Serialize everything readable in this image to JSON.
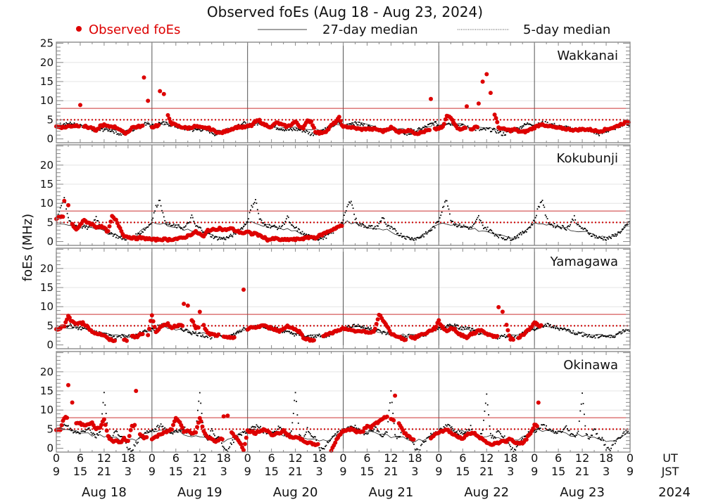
{
  "chart_data": {
    "type": "scatter",
    "title": "Observed foEs (Aug 18 - Aug 23, 2024)",
    "ylabel": "foEs (MHz)",
    "ylim": [
      -1,
      25.3
    ],
    "yticks": [
      0,
      5,
      10,
      15,
      20,
      25
    ],
    "grid": true,
    "legend": {
      "placement": "top",
      "entries": [
        {
          "label": "Observed foEs",
          "marker": "dot",
          "color": "#dd0000"
        },
        {
          "label": "27-day median",
          "marker": "solid-line",
          "color": "#000000"
        },
        {
          "label": "5-day median",
          "marker": "dotted-line",
          "color": "#000000"
        }
      ]
    },
    "reference_lines": [
      {
        "value": 8,
        "style": "solid",
        "color": "#cc3333"
      },
      {
        "value": 5,
        "style": "dotted",
        "color": "#cc0000"
      }
    ],
    "x_ticks_ut": [
      "0",
      "6",
      "12",
      "18",
      "0",
      "6",
      "12",
      "18",
      "0",
      "6",
      "12",
      "18",
      "0",
      "6",
      "12",
      "18",
      "0",
      "6",
      "12",
      "18",
      "0",
      "6",
      "12",
      "18",
      "0"
    ],
    "x_ticks_jst": [
      "9",
      "15",
      "21",
      "3",
      "9",
      "15",
      "21",
      "3",
      "9",
      "15",
      "21",
      "3",
      "9",
      "15",
      "21",
      "3",
      "9",
      "15",
      "21",
      "3",
      "9",
      "15",
      "21",
      "3",
      "9"
    ],
    "x_row_labels": {
      "ut": "UT",
      "jst": "JST"
    },
    "days": [
      "Aug 18",
      "Aug 19",
      "Aug 20",
      "Aug 21",
      "Aug 22",
      "Aug 23"
    ],
    "year": "2024",
    "hours_total": 144,
    "observed_end_hour": 122,
    "panels": [
      {
        "station": "Wakkanai",
        "median27_base": [
          3.5,
          3.6,
          3.8,
          3.9,
          4.0,
          3.8,
          3.6,
          3.4,
          3.2,
          3.0,
          2.9,
          2.8,
          2.7,
          2.6,
          2.5,
          2.5,
          2.4,
          2.4,
          2.3,
          2.5,
          2.8,
          3.2,
          3.6,
          4.0
        ],
        "median5_base": [
          3.4,
          3.7,
          4.2,
          4.0,
          3.9,
          3.6,
          3.3,
          3.0,
          2.8,
          2.6,
          2.4,
          2.3,
          2.5,
          2.4,
          2.2,
          1.8,
          1.2,
          1.5,
          2.0,
          2.4,
          2.8,
          3.3,
          3.8,
          4.2
        ],
        "observed": [
          3.2,
          3.1,
          3.0,
          3.3,
          3.4,
          3.5,
          9.0,
          3.3,
          3.0,
          2.9,
          1.9,
          3.4,
          3.6,
          3.2,
          3.3,
          3.0,
          2.5,
          1.5,
          1.8,
          3.0,
          3.1,
          3.3,
          16.0,
          10.2,
          3.0,
          3.5,
          12.5,
          11.5,
          6.0,
          4.0,
          3.6,
          3.2,
          3.0,
          2.8,
          3.1,
          3.3,
          3.0,
          2.8,
          2.9,
          2.4,
          2.0,
          1.5,
          1.8,
          2.2,
          2.6,
          3.0,
          3.2,
          3.0,
          3.3,
          3.5,
          4.5,
          4.8,
          3.8,
          3.5,
          3.0,
          4.2,
          4.0,
          3.5,
          3.2,
          3.8,
          4.5,
          3.3,
          3.0,
          4.6,
          4.6,
          2.0,
          1.5,
          1.8,
          2.2,
          3.5,
          4.3,
          5.5,
          3.0,
          3.2,
          3.0,
          2.8,
          2.6,
          2.5,
          2.7,
          2.5,
          2.6,
          2.3,
          2.0,
          2.5,
          3.0,
          2.4,
          1.8,
          2.2,
          2.0,
          2.3,
          1.5,
          1.5,
          1.8,
          2.2,
          10.3,
          2.5,
          2.8,
          3.0,
          6.0,
          5.5,
          4.0,
          2.5,
          2.8,
          8.5,
          2.5,
          3.0,
          9.5,
          15.0,
          17.0,
          12.0,
          6.5,
          3.0,
          2.6,
          2.4,
          2.2,
          2.5,
          2.0,
          1.8,
          2.0,
          2.5,
          3.0,
          3.5,
          4.0,
          3.2,
          3.3,
          3.0,
          2.8,
          2.8,
          2.6,
          2.5,
          2.3,
          2.4,
          2.5,
          2.5,
          2.4,
          2.2,
          2.0,
          2.2,
          2.5,
          2.8,
          3.0,
          3.5,
          4.0,
          4.3
        ]
      },
      {
        "station": "Kokubunji",
        "median27_base": [
          4.8,
          5.0,
          4.8,
          4.6,
          4.4,
          4.2,
          3.9,
          3.6,
          3.4,
          3.2,
          3.0,
          2.9,
          2.7,
          2.3,
          2.0,
          1.6,
          1.2,
          1.0,
          1.0,
          1.2,
          1.6,
          2.3,
          3.2,
          4.2
        ],
        "median5_base": [
          5.5,
          9.0,
          11.0,
          6.0,
          4.5,
          4.2,
          4.0,
          3.8,
          3.5,
          4.5,
          6.5,
          4.0,
          3.5,
          2.8,
          2.0,
          1.5,
          1.0,
          0.8,
          0.8,
          1.0,
          1.5,
          2.2,
          3.0,
          4.0
        ],
        "observed": [
          6.0,
          6.5,
          10.5,
          9.5,
          4.5,
          3.0,
          4.5,
          5.5,
          5.0,
          4.5,
          3.8,
          4.0,
          3.5,
          2.5,
          6.5,
          5.5,
          3.5,
          1.5,
          1.2,
          1.0,
          0.8,
          1.0,
          0.8,
          0.8,
          0.5,
          0.5,
          0.6,
          0.6,
          0.5,
          0.6,
          0.7,
          0.8,
          1.0,
          1.5,
          2.0,
          2.5,
          2.0,
          1.2,
          3.0,
          3.0,
          3.2,
          3.5,
          3.0,
          3.2,
          3.4,
          2.8,
          2.5,
          2.2,
          2.5,
          2.0,
          2.2,
          1.5,
          1.2,
          0.5,
          0.6,
          0.8,
          0.5,
          0.4,
          0.5,
          0.6,
          0.5,
          0.7,
          0.8,
          1.0,
          1.2,
          1.0,
          1.5,
          2.0,
          2.5,
          3.0,
          3.5,
          4.0,
          null,
          null,
          null,
          null,
          null,
          null,
          null,
          null,
          null,
          null,
          null,
          null,
          null,
          null,
          null,
          null,
          null,
          null,
          null,
          null,
          null,
          null,
          null,
          null,
          null,
          null,
          null,
          null,
          null,
          null,
          null,
          null,
          null,
          null,
          null,
          null,
          null,
          null,
          null,
          null,
          null,
          null,
          null,
          null,
          null,
          null,
          null,
          null,
          null,
          null,
          null,
          null,
          null,
          null,
          null,
          null,
          null,
          null,
          null,
          null,
          null,
          null,
          null,
          null,
          null,
          null,
          null,
          null,
          null,
          null,
          null,
          null
        ]
      },
      {
        "station": "Yamagawa",
        "median27_base": [
          4.2,
          4.4,
          4.6,
          4.7,
          4.6,
          4.4,
          4.2,
          4.0,
          3.8,
          3.6,
          3.4,
          3.2,
          3.0,
          2.8,
          2.6,
          2.5,
          2.4,
          2.3,
          2.3,
          2.4,
          2.6,
          3.0,
          3.5,
          4.0
        ],
        "median5_base": [
          4.0,
          4.5,
          5.0,
          5.2,
          5.0,
          4.6,
          4.3,
          4.4,
          4.0,
          3.6,
          3.2,
          3.0,
          2.8,
          2.5,
          2.2,
          2.0,
          2.2,
          2.5,
          2.3,
          2.0,
          2.4,
          3.0,
          3.5,
          4.0
        ],
        "observed": [
          4.0,
          4.5,
          4.8,
          7.5,
          6.0,
          5.5,
          6.0,
          5.5,
          4.5,
          3.5,
          3.0,
          2.8,
          2.5,
          1.5,
          1.2,
          null,
          null,
          1.2,
          null,
          2.5,
          2.0,
          2.8,
          null,
          2.5,
          7.8,
          3.5,
          4.5,
          5.0,
          5.5,
          4.5,
          5.0,
          5.2,
          11.0,
          10.5,
          6.5,
          4.5,
          8.5,
          5.0,
          3.0,
          2.8,
          2.5,
          null,
          2.0,
          1.8,
          2.0,
          null,
          null,
          14.5,
          4.0,
          4.5,
          4.6,
          4.8,
          5.2,
          4.5,
          4.5,
          4.0,
          3.6,
          4.2,
          5.0,
          4.5,
          4.0,
          3.5,
          2.0,
          1.5,
          1.2,
          null,
          null,
          2.5,
          2.8,
          3.0,
          3.5,
          4.0,
          4.2,
          4.0,
          3.8,
          3.5,
          3.6,
          3.8,
          3.2,
          3.0,
          4.0,
          8.0,
          6.5,
          5.0,
          2.8,
          2.5,
          2.2,
          1.5,
          null,
          2.0,
          1.8,
          2.5,
          2.8,
          3.2,
          3.8,
          4.3,
          6.2,
          4.5,
          3.5,
          4.5,
          4.0,
          2.8,
          2.5,
          2.0,
          2.8,
          3.0,
          4.0,
          3.5,
          3.0,
          2.5,
          2.2,
          10.0,
          8.5,
          5.0,
          1.5,
          null,
          2.0,
          2.5,
          3.5,
          4.5,
          6.0,
          5.0,
          null,
          null,
          null,
          null,
          null,
          null,
          null,
          null,
          null,
          null,
          null,
          null,
          null,
          null,
          null,
          null,
          null,
          null,
          null,
          null,
          null,
          null
        ]
      },
      {
        "station": "Okinawa",
        "median27_base": [
          4.5,
          4.6,
          4.8,
          4.7,
          4.5,
          4.3,
          4.2,
          4.0,
          3.8,
          3.6,
          3.4,
          3.2,
          3.0,
          3.0,
          2.8,
          2.6,
          2.4,
          2.2,
          2.0,
          2.0,
          2.2,
          2.8,
          3.5,
          4.2
        ],
        "median5_base": [
          4.5,
          5.0,
          6.0,
          5.5,
          4.5,
          4.0,
          4.2,
          4.5,
          5.5,
          4.0,
          3.0,
          4.5,
          14.5,
          3.5,
          2.5,
          5.0,
          3.0,
          2.5,
          0.0,
          -0.5,
          1.5,
          2.5,
          3.5,
          4.2
        ],
        "observed": [
          4.5,
          5.0,
          8.0,
          16.5,
          12.0,
          6.5,
          6.5,
          6.0,
          6.5,
          6.5,
          5.0,
          5.5,
          7.5,
          3.0,
          2.0,
          1.8,
          1.5,
          2.5,
          2.0,
          6.0,
          14.8,
          3.5,
          2.8,
          null,
          2.5,
          3.0,
          3.5,
          4.0,
          4.5,
          5.0,
          8.0,
          7.0,
          4.5,
          4.5,
          4.0,
          4.2,
          8.0,
          4.5,
          3.0,
          2.5,
          1.5,
          2.5,
          8.5,
          8.5,
          4.0,
          3.0,
          1.5,
          -0.5,
          4.5,
          4.2,
          4.0,
          4.2,
          5.0,
          4.5,
          3.5,
          3.8,
          4.0,
          4.5,
          3.5,
          3.0,
          2.8,
          2.5,
          2.0,
          1.5,
          1.2,
          1.0,
          null,
          null,
          null,
          -0.5,
          1.5,
          3.5,
          4.5,
          4.8,
          5.0,
          4.5,
          4.2,
          4.5,
          6.0,
          5.5,
          6.5,
          7.0,
          8.0,
          8.5,
          7.5,
          14.0,
          6.5,
          4.5,
          3.5,
          2.5,
          null,
          null,
          null,
          null,
          2.5,
          3.5,
          4.0,
          4.5,
          5.0,
          4.0,
          3.5,
          3.0,
          2.5,
          3.5,
          4.0,
          3.8,
          3.0,
          2.5,
          1.5,
          1.0,
          1.2,
          1.5,
          2.0,
          1.8,
          2.5,
          1.5,
          1.2,
          1.5,
          2.5,
          4.0,
          6.0,
          12.0,
          null,
          null,
          null,
          null,
          null,
          null,
          null,
          null,
          null,
          null,
          null,
          null,
          null,
          null,
          null,
          null,
          null,
          null,
          null,
          null,
          null,
          null
        ]
      }
    ]
  }
}
